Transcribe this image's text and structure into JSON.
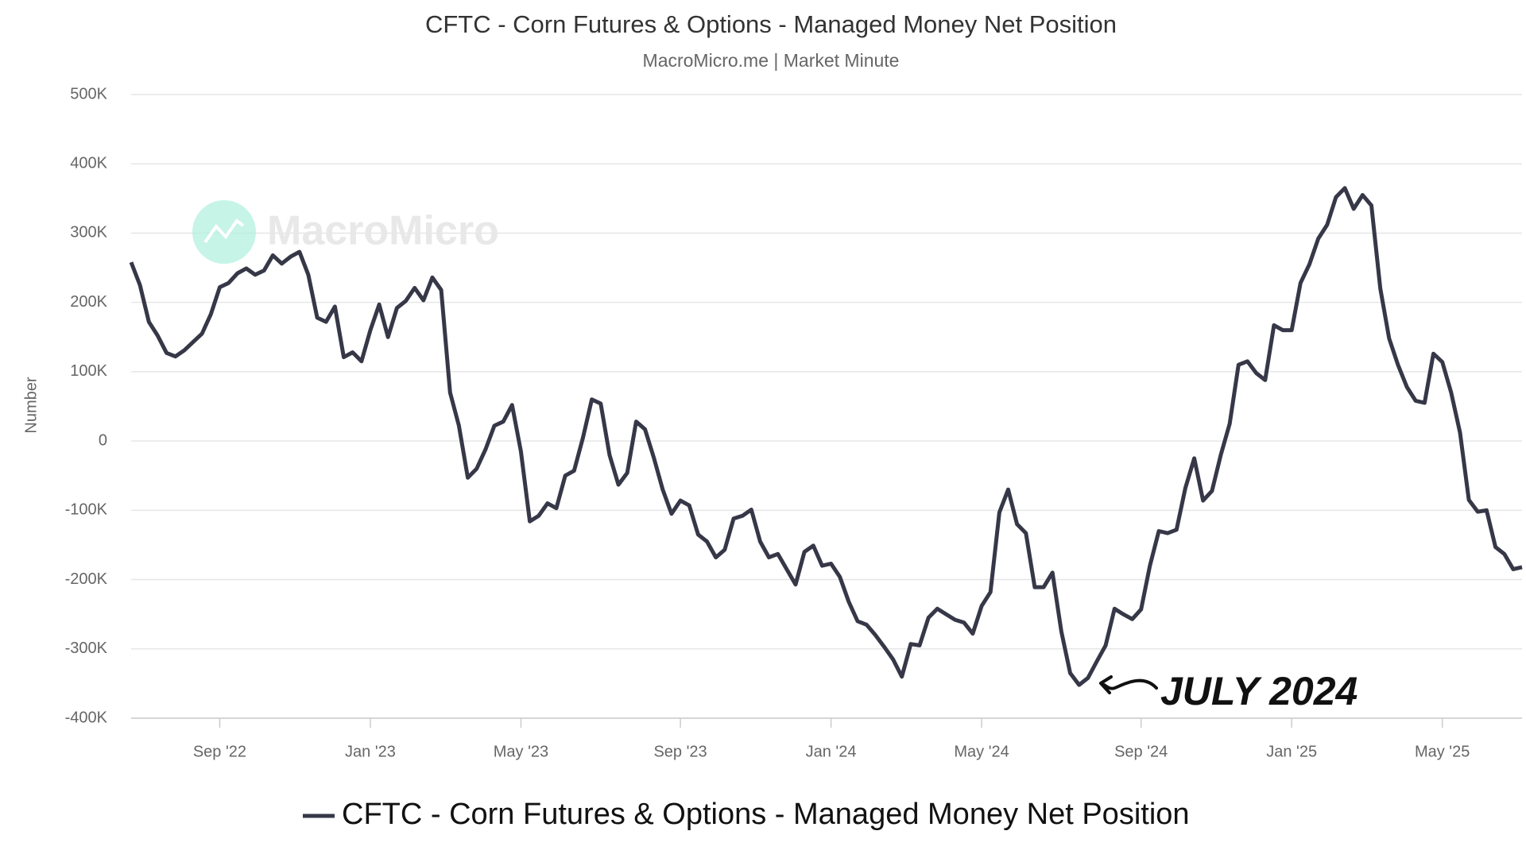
{
  "chart_data": {
    "type": "line",
    "title": "CFTC - Corn Futures & Options - Managed Money Net Position",
    "subtitle": "MacroMicro.me | Market Minute",
    "watermark": "MacroMicro",
    "y_label": "Number",
    "annotation": "JULY 2024",
    "grid": true,
    "categories": [
      null,
      null,
      null,
      null,
      null,
      null,
      null,
      null,
      null,
      null,
      "Sep '22",
      null,
      null,
      null,
      null,
      null,
      null,
      null,
      null,
      null,
      null,
      null,
      null,
      null,
      null,
      null,
      null,
      "Jan '23",
      null,
      null,
      null,
      null,
      null,
      null,
      null,
      null,
      null,
      null,
      null,
      null,
      null,
      null,
      null,
      null,
      "May '23",
      null,
      null,
      null,
      null,
      null,
      null,
      null,
      null,
      null,
      null,
      null,
      null,
      null,
      null,
      null,
      null,
      null,
      "Sep '23",
      null,
      null,
      null,
      null,
      null,
      null,
      null,
      null,
      null,
      null,
      null,
      null,
      null,
      null,
      null,
      null,
      "Jan '24",
      null,
      null,
      null,
      null,
      null,
      null,
      null,
      null,
      null,
      null,
      null,
      null,
      null,
      null,
      null,
      null,
      "May '24",
      null,
      null,
      null,
      null,
      null,
      null,
      null,
      null,
      null,
      null,
      null,
      null,
      null,
      null,
      null,
      null,
      null,
      "Sep '24",
      null,
      null,
      null,
      null,
      null,
      null,
      null,
      null,
      null,
      null,
      null,
      null,
      null,
      null,
      null,
      null,
      "Jan '25",
      null,
      null,
      null,
      null,
      null,
      null,
      null,
      null,
      null,
      null,
      null,
      null,
      null,
      null,
      null,
      null,
      "May '25",
      null,
      null,
      null,
      null,
      null,
      null,
      null,
      null,
      null
    ],
    "series": [
      {
        "name": "CFTC - Corn Futures & Options - Managed Money Net Position",
        "color": "#363848",
        "values": [
          258000,
          225000,
          172000,
          152000,
          127000,
          122000,
          131000,
          143000,
          155000,
          183000,
          222000,
          228000,
          242000,
          249000,
          240000,
          246000,
          268000,
          256000,
          266000,
          273000,
          240000,
          178000,
          172000,
          194000,
          121000,
          128000,
          115000,
          160000,
          197000,
          150000,
          192000,
          202000,
          221000,
          203000,
          236000,
          218000,
          70000,
          22000,
          -53000,
          -40000,
          -12000,
          22000,
          28000,
          52000,
          -15000,
          -116000,
          -108000,
          -90000,
          -97000,
          -50000,
          -43000,
          5000,
          60000,
          54000,
          -20000,
          -63000,
          -46000,
          28000,
          17000,
          -24000,
          -70000,
          -105000,
          -86000,
          -93000,
          -135000,
          -145000,
          -168000,
          -157000,
          -112000,
          -108000,
          -99000,
          -145000,
          -168000,
          -163000,
          -185000,
          -207000,
          -160000,
          -151000,
          -180000,
          -177000,
          -196000,
          -232000,
          -260000,
          -265000,
          -280000,
          -297000,
          -315000,
          -340000,
          -293000,
          -295000,
          -255000,
          -242000,
          -250000,
          -258000,
          -262000,
          -278000,
          -238000,
          -218000,
          -103000,
          -70000,
          -120000,
          -133000,
          -211000,
          -211000,
          -190000,
          -275000,
          -335000,
          -352000,
          -342000,
          -318000,
          -295000,
          -242000,
          -250000,
          -257000,
          -243000,
          -180000,
          -130000,
          -133000,
          -128000,
          -68000,
          -25000,
          -86000,
          -72000,
          -20000,
          25000,
          110000,
          115000,
          98000,
          88000,
          167000,
          160000,
          160000,
          228000,
          255000,
          292000,
          312000,
          352000,
          365000,
          335000,
          355000,
          340000,
          220000,
          148000,
          110000,
          78000,
          58000,
          55000,
          126000,
          114000,
          70000,
          12000,
          -85000,
          -102000,
          -100000,
          -153000,
          -163000,
          -185000,
          -182000
        ]
      }
    ],
    "ylim": [
      -400000,
      500000
    ],
    "yticks": [
      {
        "value": -400000,
        "label": "-400K"
      },
      {
        "value": -300000,
        "label": "-300K"
      },
      {
        "value": -200000,
        "label": "-200K"
      },
      {
        "value": -100000,
        "label": "-100K"
      },
      0,
      {
        "value": 100000,
        "label": "100K"
      },
      {
        "value": 200000,
        "label": "200K"
      },
      {
        "value": 300000,
        "label": "300K"
      },
      {
        "value": 400000,
        "label": "400K"
      },
      {
        "value": 500000,
        "label": "500K"
      }
    ]
  }
}
